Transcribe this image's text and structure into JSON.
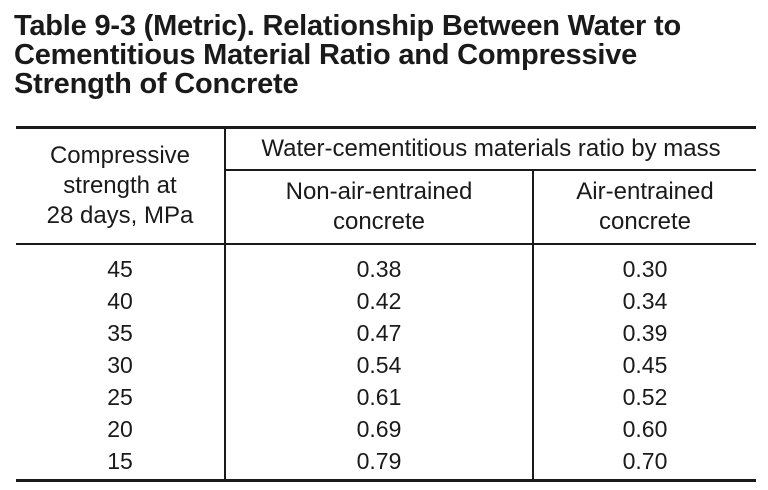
{
  "title": {
    "line1": "Table 9-3 (Metric). Relationship Between Water to",
    "line2": "Cementitious Material Ratio and Compressive",
    "line3": "Strength of Concrete"
  },
  "table": {
    "col_strength": {
      "line1": "Compressive",
      "line2": "strength at",
      "line3": "28 days, MPa"
    },
    "group_header": "Water-cementitious materials ratio by mass",
    "col_nonair": {
      "line1": "Non-air-entrained",
      "line2": "concrete"
    },
    "col_air": {
      "line1": "Air-entrained",
      "line2": "concrete"
    },
    "rows": [
      {
        "strength": "45",
        "nonair": "0.38",
        "air": "0.30"
      },
      {
        "strength": "40",
        "nonair": "0.42",
        "air": "0.34"
      },
      {
        "strength": "35",
        "nonair": "0.47",
        "air": "0.39"
      },
      {
        "strength": "30",
        "nonair": "0.54",
        "air": "0.45"
      },
      {
        "strength": "25",
        "nonair": "0.61",
        "air": "0.52"
      },
      {
        "strength": "20",
        "nonair": "0.69",
        "air": "0.60"
      },
      {
        "strength": "15",
        "nonair": "0.79",
        "air": "0.70"
      }
    ]
  }
}
